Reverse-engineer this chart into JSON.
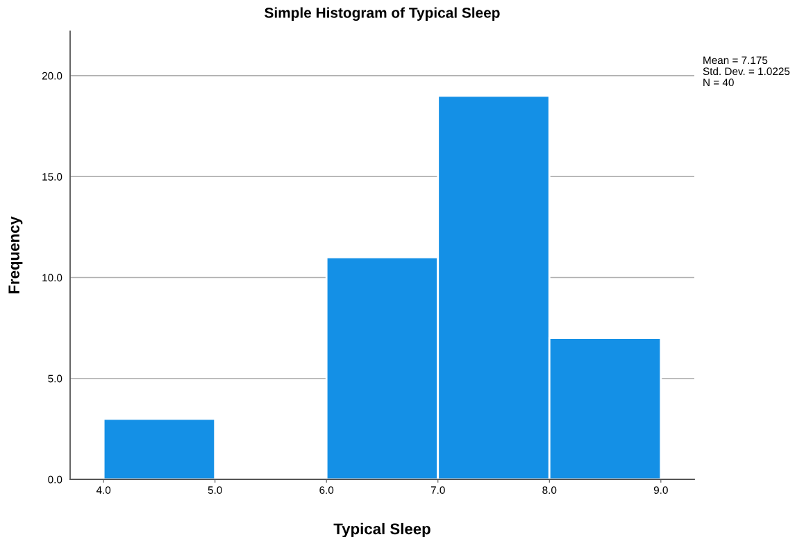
{
  "chart_data": {
    "type": "histogram",
    "title": "Simple Histogram of Typical Sleep",
    "xlabel": "Typical Sleep",
    "ylabel": "Frequency",
    "bins": [
      4,
      5,
      6,
      7,
      8,
      9
    ],
    "values": [
      3,
      0,
      11,
      19,
      7
    ],
    "color": "#1490e6",
    "xlim": [
      3.7,
      9.3
    ],
    "ylim": [
      0,
      22.2
    ],
    "xticks": [
      {
        "value": 4,
        "label": "4.0"
      },
      {
        "value": 5,
        "label": "5.0"
      },
      {
        "value": 6,
        "label": "6.0"
      },
      {
        "value": 7,
        "label": "7.0"
      },
      {
        "value": 8,
        "label": "8.0"
      },
      {
        "value": 9,
        "label": "9.0"
      }
    ],
    "yticks": [
      {
        "value": 0,
        "label": "0.0"
      },
      {
        "value": 5,
        "label": "5.0"
      },
      {
        "value": 10,
        "label": "10.0"
      },
      {
        "value": 15,
        "label": "15.0"
      },
      {
        "value": 20,
        "label": "20.0"
      }
    ],
    "grid": "y",
    "legend": false,
    "annotations": [
      "Mean = 7.175",
      "Std. Dev. = 1.0225",
      "N = 40"
    ]
  }
}
